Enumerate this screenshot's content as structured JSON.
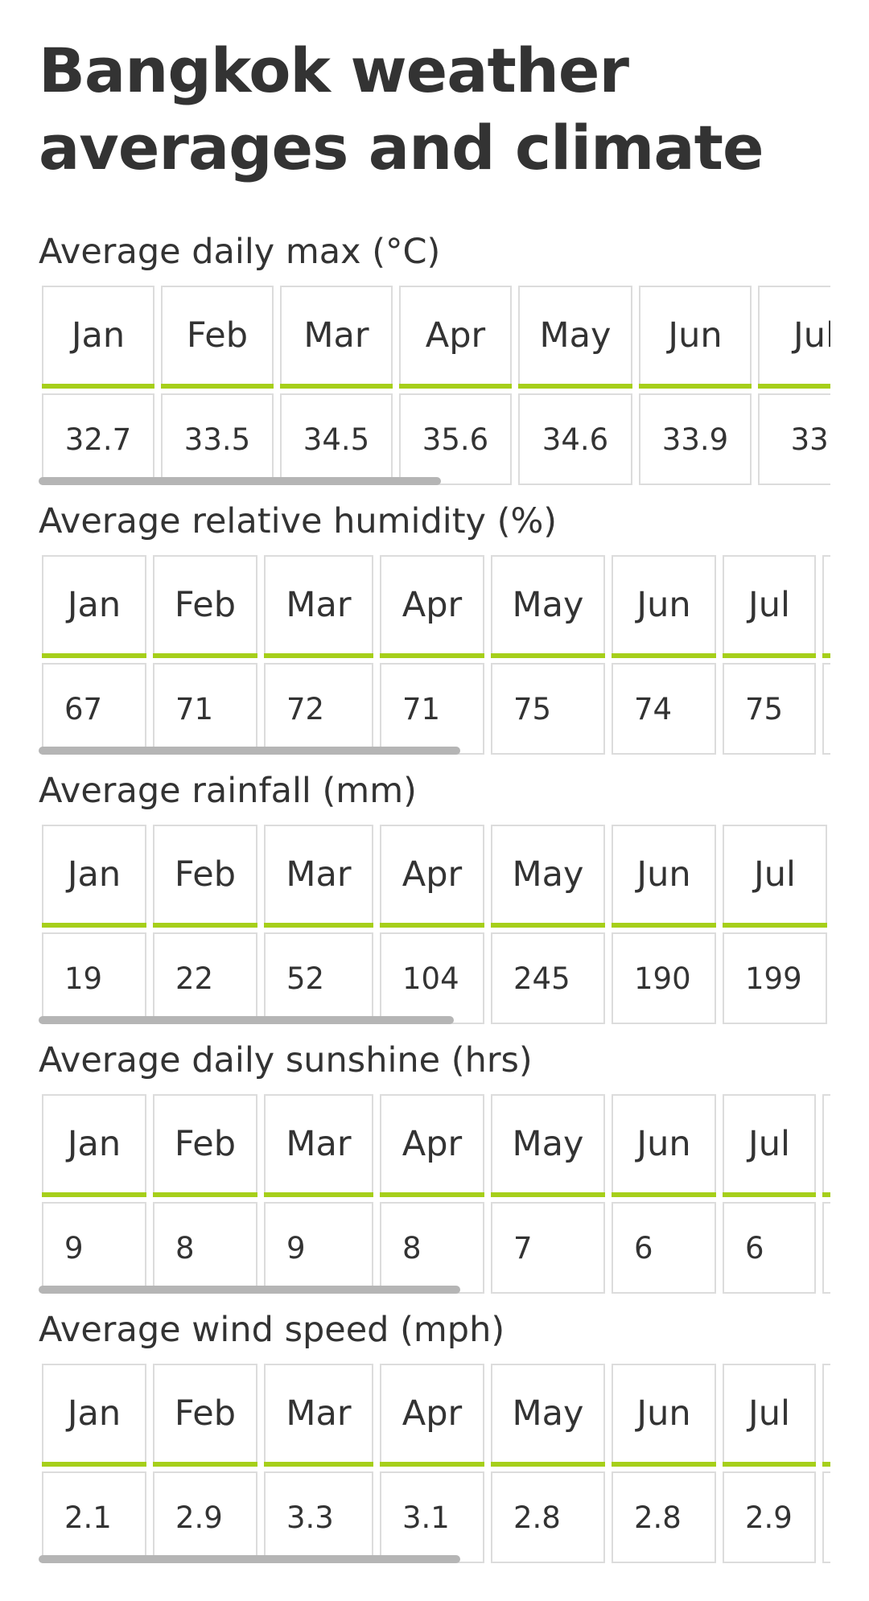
{
  "page": {
    "title": "Bangkok weather averages and climate"
  },
  "colors": {
    "accent": "#a6cf1a",
    "border": "#dcdcdc",
    "text": "#333333",
    "scrollbar": "#b5b5b5"
  },
  "sections": [
    {
      "heading": "Average daily max (°C)",
      "months": [
        "Jan",
        "Feb",
        "Mar",
        "Apr",
        "May",
        "Jun",
        "Jul"
      ],
      "values": [
        "32.7",
        "33.5",
        "34.5",
        "35.6",
        "34.6",
        "33.9",
        "33."
      ]
    },
    {
      "heading": "Average relative humidity (%)",
      "months": [
        "Jan",
        "Feb",
        "Mar",
        "Apr",
        "May",
        "Jun",
        "Jul"
      ],
      "values": [
        "67",
        "71",
        "72",
        "71",
        "75",
        "74",
        "75"
      ]
    },
    {
      "heading": "Average rainfall (mm)",
      "months": [
        "Jan",
        "Feb",
        "Mar",
        "Apr",
        "May",
        "Jun",
        "Jul"
      ],
      "values": [
        "19",
        "22",
        "52",
        "104",
        "245",
        "190",
        "199"
      ]
    },
    {
      "heading": "Average daily sunshine (hrs)",
      "months": [
        "Jan",
        "Feb",
        "Mar",
        "Apr",
        "May",
        "Jun",
        "Jul"
      ],
      "values": [
        "9",
        "8",
        "9",
        "8",
        "7",
        "6",
        "6"
      ]
    },
    {
      "heading": "Average wind speed (mph)",
      "months": [
        "Jan",
        "Feb",
        "Mar",
        "Apr",
        "May",
        "Jun",
        "Jul"
      ],
      "values": [
        "2.1",
        "2.9",
        "3.3",
        "3.1",
        "2.8",
        "2.8",
        "2.9"
      ]
    }
  ]
}
